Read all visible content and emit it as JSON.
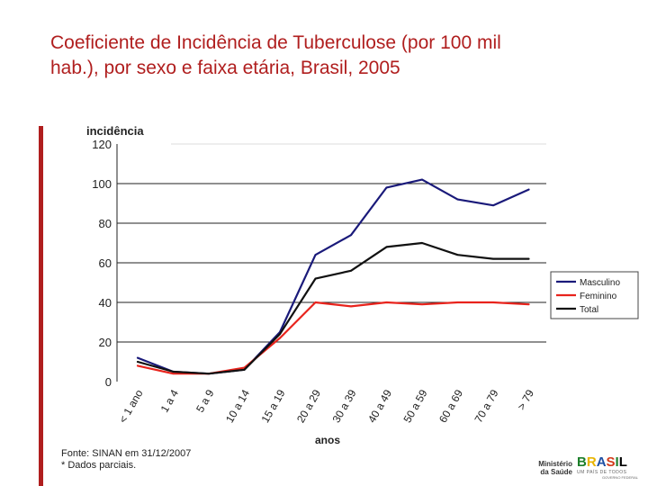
{
  "slide": {
    "title_line1": "Coeficiente de Incidência de Tuberculose (por 100 mil",
    "title_line2": "hab.), por sexo e faixa etária, Brasil, 2005",
    "accent_color": "#b01e1e"
  },
  "chart_data": {
    "type": "line",
    "title": "",
    "ylabel": "incidência",
    "xlabel": "anos",
    "ylim": [
      0,
      120
    ],
    "yticks": [
      0,
      20,
      40,
      60,
      80,
      100,
      120
    ],
    "grid": true,
    "legend_position": "right",
    "categories": [
      "< 1 ano",
      "1 a 4",
      "5 a 9",
      "10 a 14",
      "15 a 19",
      "20 a 29",
      "30 a 39",
      "40 a 49",
      "50 a 59",
      "60 a 69",
      "70 a 79",
      "> 79"
    ],
    "series": [
      {
        "name": "Masculino",
        "color": "#1a1a7a",
        "values": [
          12,
          5,
          4,
          6,
          25,
          64,
          74,
          98,
          102,
          92,
          89,
          97
        ]
      },
      {
        "name": "Feminino",
        "color": "#e8231c",
        "values": [
          8,
          4,
          4,
          7,
          22,
          40,
          38,
          40,
          39,
          40,
          40,
          39
        ]
      },
      {
        "name": "Total",
        "color": "#111111",
        "values": [
          10,
          5,
          4,
          6,
          24,
          52,
          56,
          68,
          70,
          64,
          62,
          62
        ]
      }
    ]
  },
  "source": {
    "line1": "Fonte: SINAN em 31/12/2007",
    "line2": "* Dados parciais."
  },
  "logos": {
    "ministerio_line1": "Ministério",
    "ministerio_line2": "da Saúde",
    "brasil_letters": [
      "B",
      "R",
      "A",
      "S",
      "I",
      "L"
    ],
    "brasil_tagline": "UM PAÍS DE TODOS",
    "brasil_gov": "GOVERNO FEDERAL"
  }
}
